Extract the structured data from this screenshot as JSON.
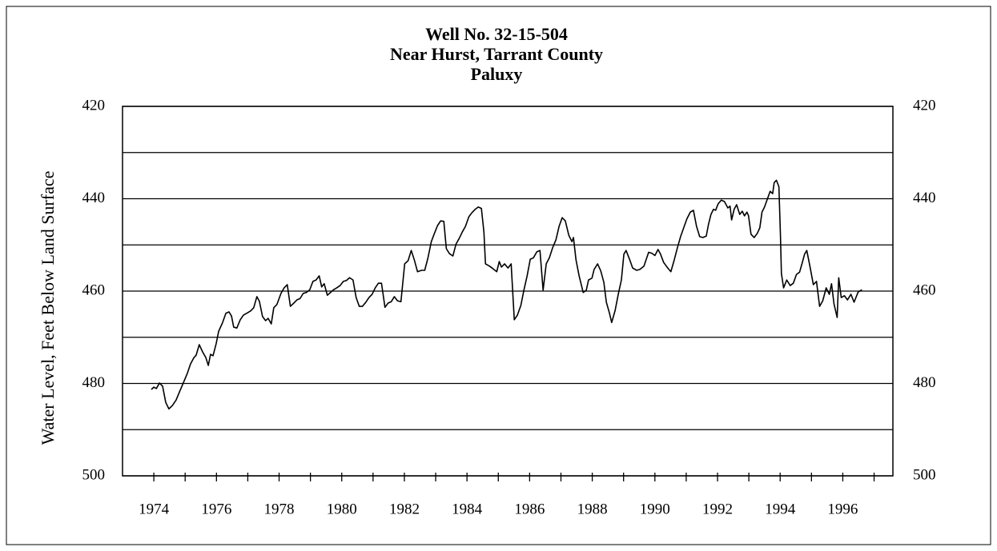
{
  "chart_data": {
    "type": "line",
    "title": [
      "Well No. 32-15-504",
      "Near Hurst, Tarrant County",
      "Paluxy"
    ],
    "y_label": "Water Level, Feet Below Land Surface",
    "color": "#000000",
    "grid": true,
    "mirror_y_labels": true,
    "ylim": [
      500,
      420
    ],
    "yticks": [
      420,
      440,
      460,
      480,
      500
    ],
    "minor_yticks": [
      430,
      450,
      470,
      490
    ],
    "xlim": [
      1973,
      1997.6
    ],
    "xticks": [
      1974,
      1976,
      1978,
      1980,
      1982,
      1984,
      1986,
      1988,
      1990,
      1992,
      1994,
      1996
    ],
    "minor_xticks": [
      1975,
      1977,
      1979,
      1981,
      1983,
      1985,
      1987,
      1989,
      1991,
      1993,
      1995,
      1997
    ],
    "x": [
      1973.92,
      1974.0,
      1974.08,
      1974.18,
      1974.28,
      1974.38,
      1974.48,
      1974.59,
      1974.71,
      1974.82,
      1974.94,
      1975.07,
      1975.17,
      1975.28,
      1975.35,
      1975.45,
      1975.56,
      1975.66,
      1975.74,
      1975.81,
      1975.89,
      1975.99,
      1976.07,
      1976.19,
      1976.3,
      1976.4,
      1976.48,
      1976.55,
      1976.65,
      1976.76,
      1976.86,
      1976.99,
      1977.09,
      1977.19,
      1977.29,
      1977.37,
      1977.47,
      1977.57,
      1977.65,
      1977.75,
      1977.83,
      1977.93,
      1978.06,
      1978.16,
      1978.26,
      1978.36,
      1978.47,
      1978.57,
      1978.67,
      1978.77,
      1978.87,
      1978.98,
      1979.08,
      1979.18,
      1979.28,
      1979.36,
      1979.44,
      1979.54,
      1979.64,
      1979.74,
      1979.84,
      1979.95,
      1980.05,
      1980.15,
      1980.25,
      1980.36,
      1980.46,
      1980.56,
      1980.66,
      1980.76,
      1980.87,
      1980.97,
      1981.07,
      1981.17,
      1981.27,
      1981.38,
      1981.48,
      1981.58,
      1981.68,
      1981.78,
      1981.89,
      1982.01,
      1982.12,
      1982.22,
      1982.32,
      1982.42,
      1982.55,
      1982.65,
      1982.75,
      1982.86,
      1982.96,
      1983.06,
      1983.16,
      1983.26,
      1983.34,
      1983.44,
      1983.55,
      1983.65,
      1983.75,
      1983.85,
      1983.95,
      1984.06,
      1984.16,
      1984.26,
      1984.36,
      1984.46,
      1984.54,
      1984.59,
      1984.72,
      1984.82,
      1984.95,
      1985.03,
      1985.1,
      1985.2,
      1985.31,
      1985.41,
      1985.51,
      1985.61,
      1985.72,
      1985.82,
      1985.92,
      1986.02,
      1986.12,
      1986.23,
      1986.33,
      1986.43,
      1986.53,
      1986.63,
      1986.74,
      1986.84,
      1986.94,
      1987.04,
      1987.14,
      1987.25,
      1987.35,
      1987.4,
      1987.48,
      1987.58,
      1987.71,
      1987.81,
      1987.88,
      1987.99,
      1988.06,
      1988.17,
      1988.27,
      1988.37,
      1988.45,
      1988.55,
      1988.62,
      1988.73,
      1988.83,
      1988.93,
      1989.01,
      1989.08,
      1989.19,
      1989.29,
      1989.42,
      1989.52,
      1989.65,
      1989.72,
      1989.8,
      1989.9,
      1990.0,
      1990.1,
      1990.18,
      1990.28,
      1990.41,
      1990.51,
      1990.62,
      1990.72,
      1990.82,
      1990.92,
      1991.02,
      1991.13,
      1991.23,
      1991.33,
      1991.43,
      1991.53,
      1991.64,
      1991.71,
      1991.79,
      1991.87,
      1991.94,
      1992.02,
      1992.12,
      1992.22,
      1992.33,
      1992.4,
      1992.45,
      1992.53,
      1992.61,
      1992.71,
      1992.79,
      1992.86,
      1992.94,
      1992.99,
      1993.07,
      1993.17,
      1993.27,
      1993.35,
      1993.42,
      1993.5,
      1993.6,
      1993.68,
      1993.76,
      1993.81,
      1993.88,
      1993.96,
      1994.01,
      1994.04,
      1994.11,
      1994.21,
      1994.32,
      1994.42,
      1994.52,
      1994.62,
      1994.7,
      1994.78,
      1994.85,
      1994.95,
      1995.06,
      1995.16,
      1995.26,
      1995.36,
      1995.47,
      1995.57,
      1995.64,
      1995.72,
      1995.82,
      1995.87,
      1995.95,
      1996.05,
      1996.15,
      1996.26,
      1996.36,
      1996.49,
      1996.61
    ],
    "values": [
      481.3,
      480.8,
      481.1,
      479.9,
      480.6,
      484.1,
      485.5,
      484.8,
      483.6,
      481.8,
      479.9,
      477.8,
      475.8,
      474.4,
      473.9,
      471.6,
      473.2,
      474.4,
      476.1,
      473.7,
      474.0,
      471.4,
      468.7,
      466.9,
      464.8,
      464.5,
      465.4,
      467.8,
      468.0,
      466.2,
      465.2,
      464.7,
      464.3,
      463.6,
      461.2,
      462.2,
      465.5,
      466.4,
      465.9,
      467.1,
      463.6,
      462.9,
      460.5,
      459.3,
      458.6,
      463.3,
      462.6,
      461.9,
      461.6,
      460.5,
      460.3,
      459.7,
      457.9,
      457.6,
      456.7,
      459.1,
      458.4,
      460.9,
      460.3,
      459.7,
      459.3,
      458.8,
      457.9,
      457.7,
      457.1,
      457.6,
      461.4,
      463.3,
      463.3,
      462.5,
      461.4,
      460.7,
      459.3,
      458.3,
      458.3,
      463.5,
      462.6,
      462.3,
      461.2,
      462.1,
      462.3,
      454.1,
      453.4,
      451.2,
      453.3,
      455.8,
      455.5,
      455.5,
      452.9,
      449.3,
      447.5,
      445.8,
      444.8,
      444.9,
      450.8,
      451.9,
      452.4,
      449.8,
      448.6,
      447.2,
      446.0,
      443.9,
      443.0,
      442.3,
      441.8,
      442.1,
      447.2,
      454.1,
      454.6,
      455.1,
      455.8,
      453.6,
      454.8,
      454.1,
      455.0,
      454.1,
      466.2,
      465.2,
      463.1,
      459.7,
      456.7,
      453.1,
      452.8,
      451.5,
      451.2,
      459.8,
      454.1,
      452.8,
      450.5,
      448.9,
      446.0,
      444.1,
      444.8,
      447.9,
      449.3,
      448.4,
      453.2,
      456.7,
      460.3,
      459.8,
      457.6,
      457.2,
      455.3,
      454.1,
      455.6,
      458.1,
      462.4,
      464.8,
      466.8,
      464.2,
      460.7,
      457.6,
      452.0,
      451.2,
      453.1,
      455.0,
      455.5,
      455.3,
      454.6,
      453.2,
      451.6,
      451.8,
      452.3,
      451.0,
      452.0,
      453.8,
      455.0,
      455.8,
      453.2,
      450.6,
      448.2,
      446.3,
      444.4,
      442.9,
      442.5,
      446.0,
      448.2,
      448.4,
      448.1,
      445.6,
      443.4,
      442.3,
      442.5,
      441.1,
      440.3,
      440.6,
      442.0,
      441.6,
      444.6,
      442.3,
      441.3,
      443.4,
      442.7,
      443.7,
      442.9,
      443.7,
      447.7,
      448.4,
      447.5,
      446.3,
      442.9,
      441.8,
      439.9,
      438.4,
      438.9,
      436.5,
      436.0,
      437.4,
      448.1,
      456.2,
      459.3,
      457.6,
      458.8,
      458.3,
      456.4,
      455.9,
      454.0,
      452.0,
      451.2,
      454.6,
      458.6,
      457.9,
      463.3,
      462.1,
      459.3,
      460.7,
      458.4,
      462.8,
      465.7,
      457.1,
      461.4,
      461.0,
      461.9,
      460.7,
      462.4,
      460.2,
      459.7
    ]
  }
}
